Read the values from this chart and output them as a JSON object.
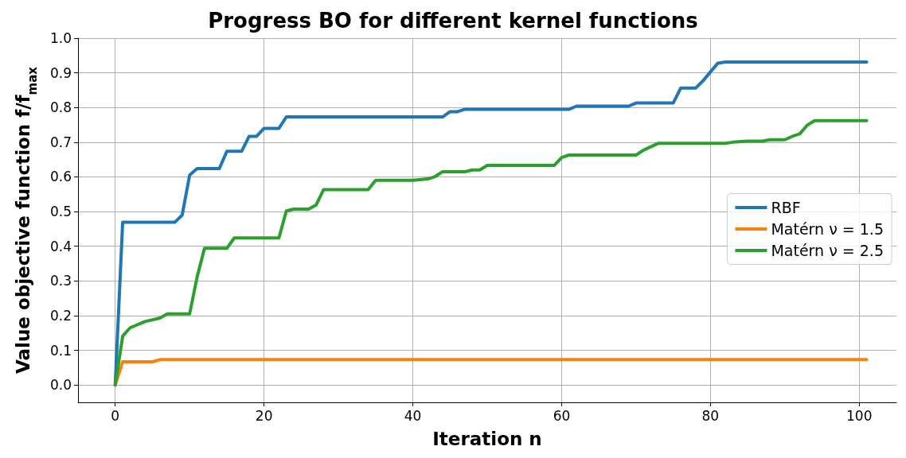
{
  "chart_data": {
    "type": "line",
    "title": "Progress BO for different kernel functions",
    "xlabel": "Iteration n",
    "ylabel": "Value objective function f/f$_{max}$",
    "xlim": [
      -5,
      105
    ],
    "xticks": [
      0,
      20,
      40,
      60,
      80,
      100
    ],
    "ylim": [
      -0.05,
      1.0
    ],
    "yticks": [
      {
        "value": 0,
        "label": "0.0"
      },
      0.1,
      0.2,
      0.3,
      0.4,
      0.5,
      0.6,
      0.7,
      0.8,
      0.9,
      {
        "value": 1,
        "label": "1.0"
      }
    ],
    "grid": true,
    "legend": "right",
    "marker": "none",
    "line_style": "solid",
    "series": [
      {
        "name": "RBF",
        "color": "#1f77b4",
        "x": [
          0,
          1,
          8,
          9,
          10,
          11,
          14,
          15,
          17,
          18,
          19,
          20,
          22,
          23,
          44,
          45,
          46,
          47,
          61,
          62,
          69,
          70,
          75,
          76,
          78,
          79,
          81,
          82,
          101
        ],
        "values": [
          0,
          0.469,
          0.469,
          0.49,
          0.605,
          0.624,
          0.624,
          0.674,
          0.674,
          0.717,
          0.717,
          0.74,
          0.74,
          0.773,
          0.773,
          0.788,
          0.788,
          0.795,
          0.795,
          0.804,
          0.804,
          0.813,
          0.813,
          0.856,
          0.856,
          0.877,
          0.928,
          0.931,
          0.931
        ]
      },
      {
        "name": "Matérn ν = 1.5",
        "color": "#ff7f0e",
        "x": [
          0,
          1,
          5,
          6,
          101
        ],
        "values": [
          0,
          0.067,
          0.067,
          0.073,
          0.073
        ]
      },
      {
        "name": "Matérn ν = 2.5",
        "color": "#2ca02c",
        "x": [
          0,
          1,
          2,
          4,
          6,
          7,
          10,
          11,
          12,
          15,
          16,
          22,
          23,
          24,
          26,
          27,
          28,
          34,
          35,
          40,
          42,
          43,
          44,
          47,
          48,
          49,
          50,
          59,
          60,
          61,
          70,
          71,
          73,
          82,
          83,
          85,
          87,
          88,
          90,
          91,
          92,
          93,
          94,
          101
        ],
        "values": [
          0,
          0.141,
          0.165,
          0.183,
          0.193,
          0.205,
          0.205,
          0.311,
          0.394,
          0.394,
          0.424,
          0.424,
          0.502,
          0.507,
          0.507,
          0.519,
          0.563,
          0.563,
          0.59,
          0.59,
          0.594,
          0.601,
          0.615,
          0.615,
          0.62,
          0.62,
          0.633,
          0.633,
          0.656,
          0.663,
          0.663,
          0.677,
          0.697,
          0.697,
          0.7,
          0.703,
          0.703,
          0.707,
          0.707,
          0.717,
          0.724,
          0.749,
          0.762,
          0.762
        ]
      }
    ]
  }
}
